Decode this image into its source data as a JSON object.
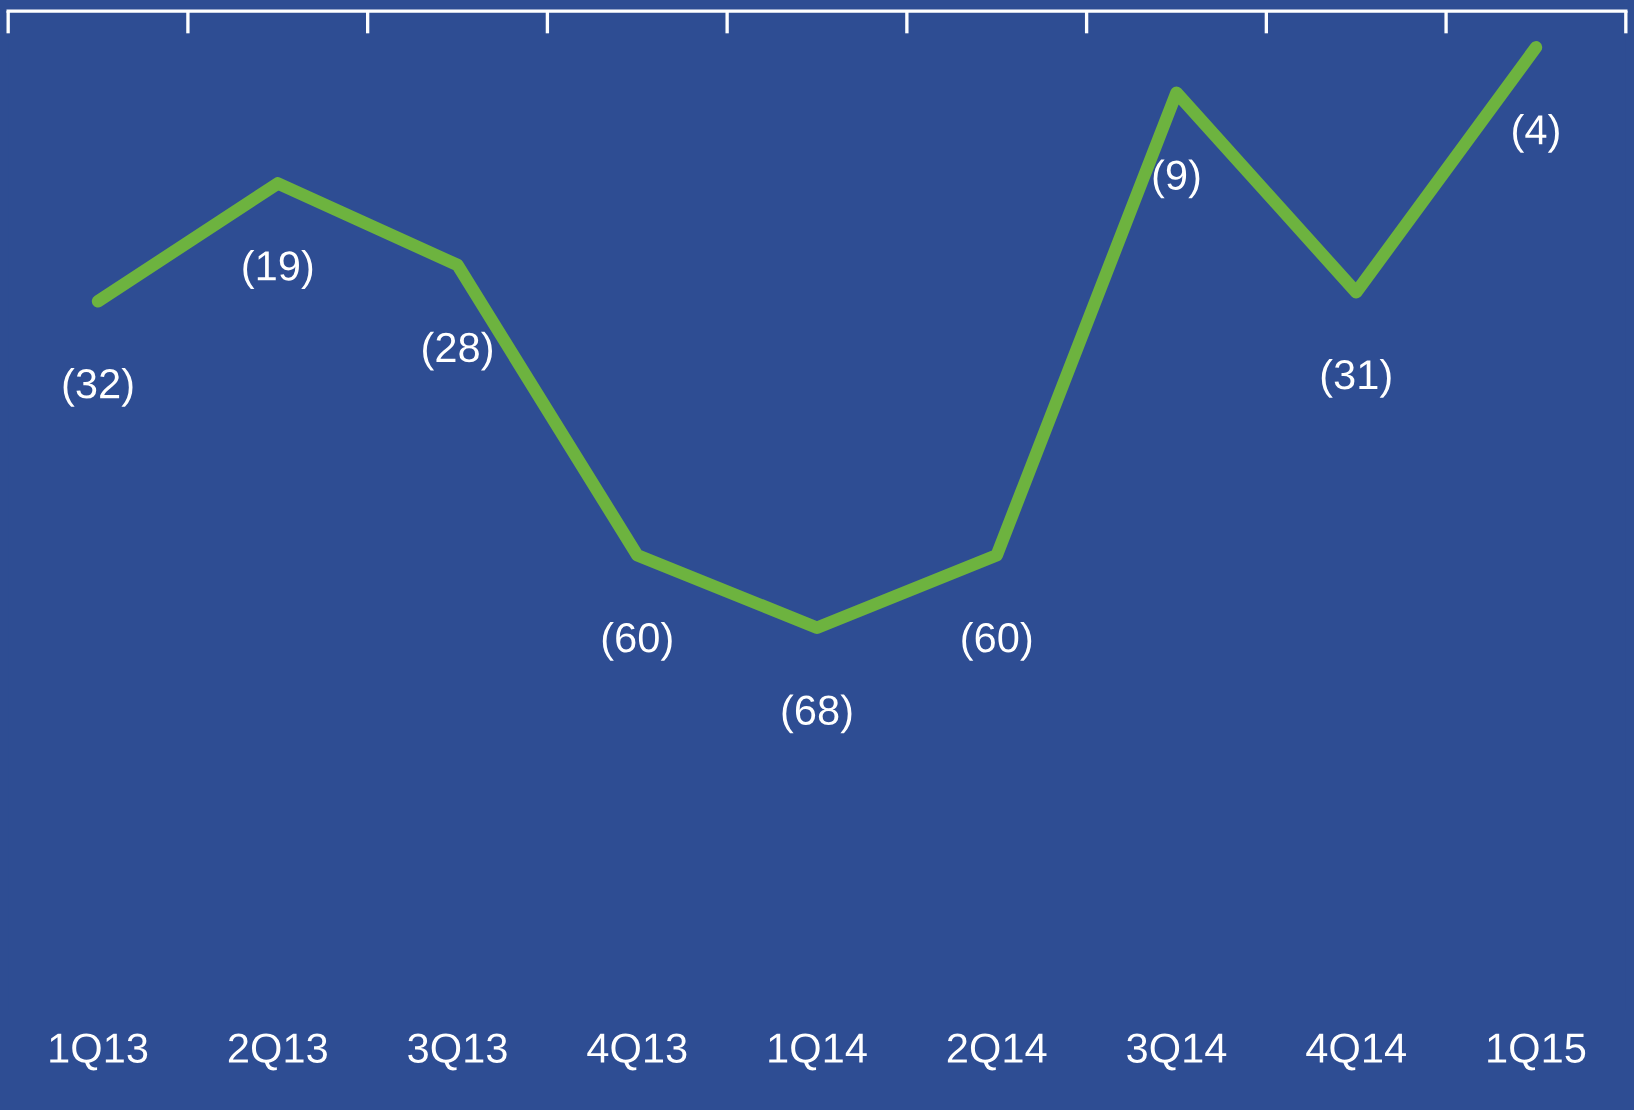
{
  "chart_data": {
    "type": "line",
    "categories": [
      "1Q13",
      "2Q13",
      "3Q13",
      "4Q13",
      "1Q14",
      "2Q14",
      "3Q14",
      "4Q14",
      "1Q15"
    ],
    "series": [
      {
        "color": "#6db33f",
        "values": [
          -32,
          -19,
          -28,
          -60,
          -68,
          -60,
          -9,
          -31,
          -4
        ],
        "value_labels": [
          "(32)",
          "(19)",
          "(28)",
          "(60)",
          "(68)",
          "(60)",
          "(9)",
          "(31)",
          "(4)"
        ]
      }
    ],
    "grid": false,
    "marker": "none",
    "line_style": "solid",
    "tick_labels": "x"
  }
}
